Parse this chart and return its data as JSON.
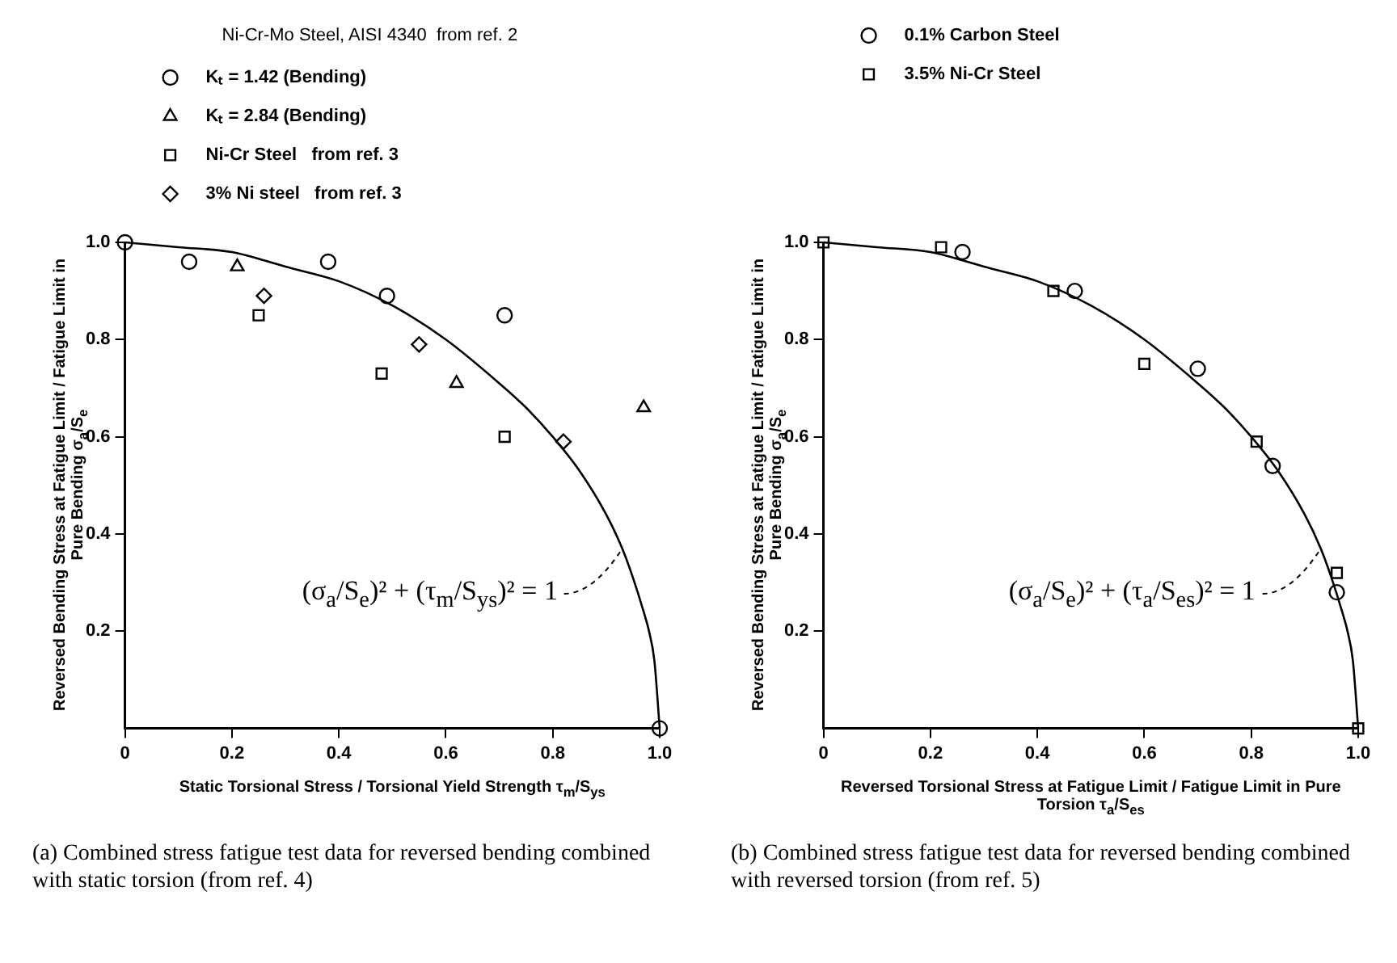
{
  "chart_data": [
    {
      "type": "scatter",
      "legend_title": "Ni-Cr-Mo Steel, AISI 4340  from ref. 2",
      "legend": "top",
      "grid": false,
      "xlim": [
        0,
        1
      ],
      "ylim": [
        0,
        1
      ],
      "xticks": [
        0,
        0.2,
        0.4,
        0.6,
        0.8,
        {
          "value": 1,
          "label": "1.0"
        }
      ],
      "yticks": [
        0.2,
        0.4,
        0.6,
        0.8,
        {
          "value": 1,
          "label": "1.0"
        }
      ],
      "xlabel": "Static Torsional Stress / Torsional Yield Strength   τ$_{m}$/S$_{ys}$",
      "ylabel": "Reversed Bending Stress at Fatigue Limit / Fatigue Limit in Pure Bending   σ$_{a}$/S$_{e}$",
      "series": [
        {
          "name": "Kₜ = 1.42 (Bending)",
          "color": "#000000",
          "marker": "circle",
          "x": [
            0,
            0.12,
            0.38,
            0.49,
            0.71,
            1.0
          ],
          "values": [
            1.0,
            0.96,
            0.96,
            0.89,
            0.85,
            0
          ]
        },
        {
          "name": "Kₜ = 2.84 (Bending)",
          "color": "#000000",
          "marker": "triangle",
          "x": [
            0.21,
            0.62,
            0.97
          ],
          "values": [
            0.95,
            0.71,
            0.66
          ]
        },
        {
          "name": "Ni-Cr Steel   from ref. 3",
          "color": "#000000",
          "marker": "square",
          "x": [
            0.25,
            0.48,
            0.71
          ],
          "values": [
            0.85,
            0.73,
            0.6
          ]
        },
        {
          "name": "3% Ni steel   from ref. 3",
          "color": "#000000",
          "marker": "diamond",
          "x": [
            0.26,
            0.55,
            0.82
          ],
          "values": [
            0.89,
            0.79,
            0.59
          ]
        },
        {
          "type": "line",
          "color": "#000000",
          "marker": "none",
          "line_style": "solid",
          "x": [
            0,
            0.1,
            0.2,
            0.3,
            0.4,
            0.5,
            0.6,
            0.7,
            0.75,
            0.8,
            0.85,
            0.9,
            0.93,
            0.95,
            0.97,
            0.98,
            0.99,
            1
          ],
          "values": [
            1,
            0.99,
            0.98,
            0.95,
            0.92,
            0.87,
            0.8,
            0.71,
            0.66,
            0.6,
            0.53,
            0.44,
            0.37,
            0.31,
            0.24,
            0.2,
            0.14,
            0
          ]
        }
      ],
      "annotations": [
        "(σ$_{a}$/S$_{e}$)² + (τ$_{m}$/S$_{ys}$)² = 1",
        "(a)  Combined stress fatigue test data for reversed bending combined with static torsion (from ref. 4)"
      ]
    },
    {
      "type": "scatter",
      "legend": "top",
      "grid": false,
      "xlim": [
        0,
        1
      ],
      "ylim": [
        0,
        1
      ],
      "xticks": [
        0,
        0.2,
        0.4,
        0.6,
        0.8,
        {
          "value": 1,
          "label": "1.0"
        }
      ],
      "yticks": [
        0.2,
        0.4,
        0.6,
        0.8,
        {
          "value": 1,
          "label": "1.0"
        }
      ],
      "xlabel": "Reversed Torsional Stress at Fatigue Limit / Fatigue Limit in Pure Torsion   τ$_{a}$/S$_{es}$",
      "ylabel": "Reversed Bending Stress at Fatigue Limit / Fatigue Limit in Pure Bending   σ$_{a}$/S$_{e}$",
      "series": [
        {
          "name": "0.1% Carbon Steel",
          "color": "#000000",
          "marker": "circle",
          "x": [
            0.26,
            0.47,
            0.7,
            0.84,
            0.96
          ],
          "values": [
            0.98,
            0.9,
            0.74,
            0.54,
            0.28
          ]
        },
        {
          "name": "3.5% Ni-Cr Steel",
          "color": "#000000",
          "marker": "square",
          "x": [
            0,
            0.22,
            0.43,
            0.6,
            0.81,
            0.96,
            1.0
          ],
          "values": [
            1.0,
            0.99,
            0.9,
            0.75,
            0.59,
            0.32,
            0
          ]
        },
        {
          "type": "line",
          "color": "#000000",
          "marker": "none",
          "line_style": "solid",
          "x": [
            0,
            0.1,
            0.2,
            0.3,
            0.4,
            0.5,
            0.6,
            0.7,
            0.75,
            0.8,
            0.85,
            0.9,
            0.93,
            0.95,
            0.97,
            0.98,
            0.99,
            1
          ],
          "values": [
            1,
            0.99,
            0.98,
            0.95,
            0.92,
            0.87,
            0.8,
            0.71,
            0.66,
            0.6,
            0.53,
            0.44,
            0.37,
            0.31,
            0.24,
            0.2,
            0.14,
            0
          ]
        }
      ],
      "annotations": [
        "(σ$_{a}$/S$_{e}$)² + (τ$_{a}$/S$_{es}$)² = 1",
        "(b)  Combined stress fatigue test data for reversed bending combined with reversed torsion (from ref. 5)"
      ]
    }
  ]
}
